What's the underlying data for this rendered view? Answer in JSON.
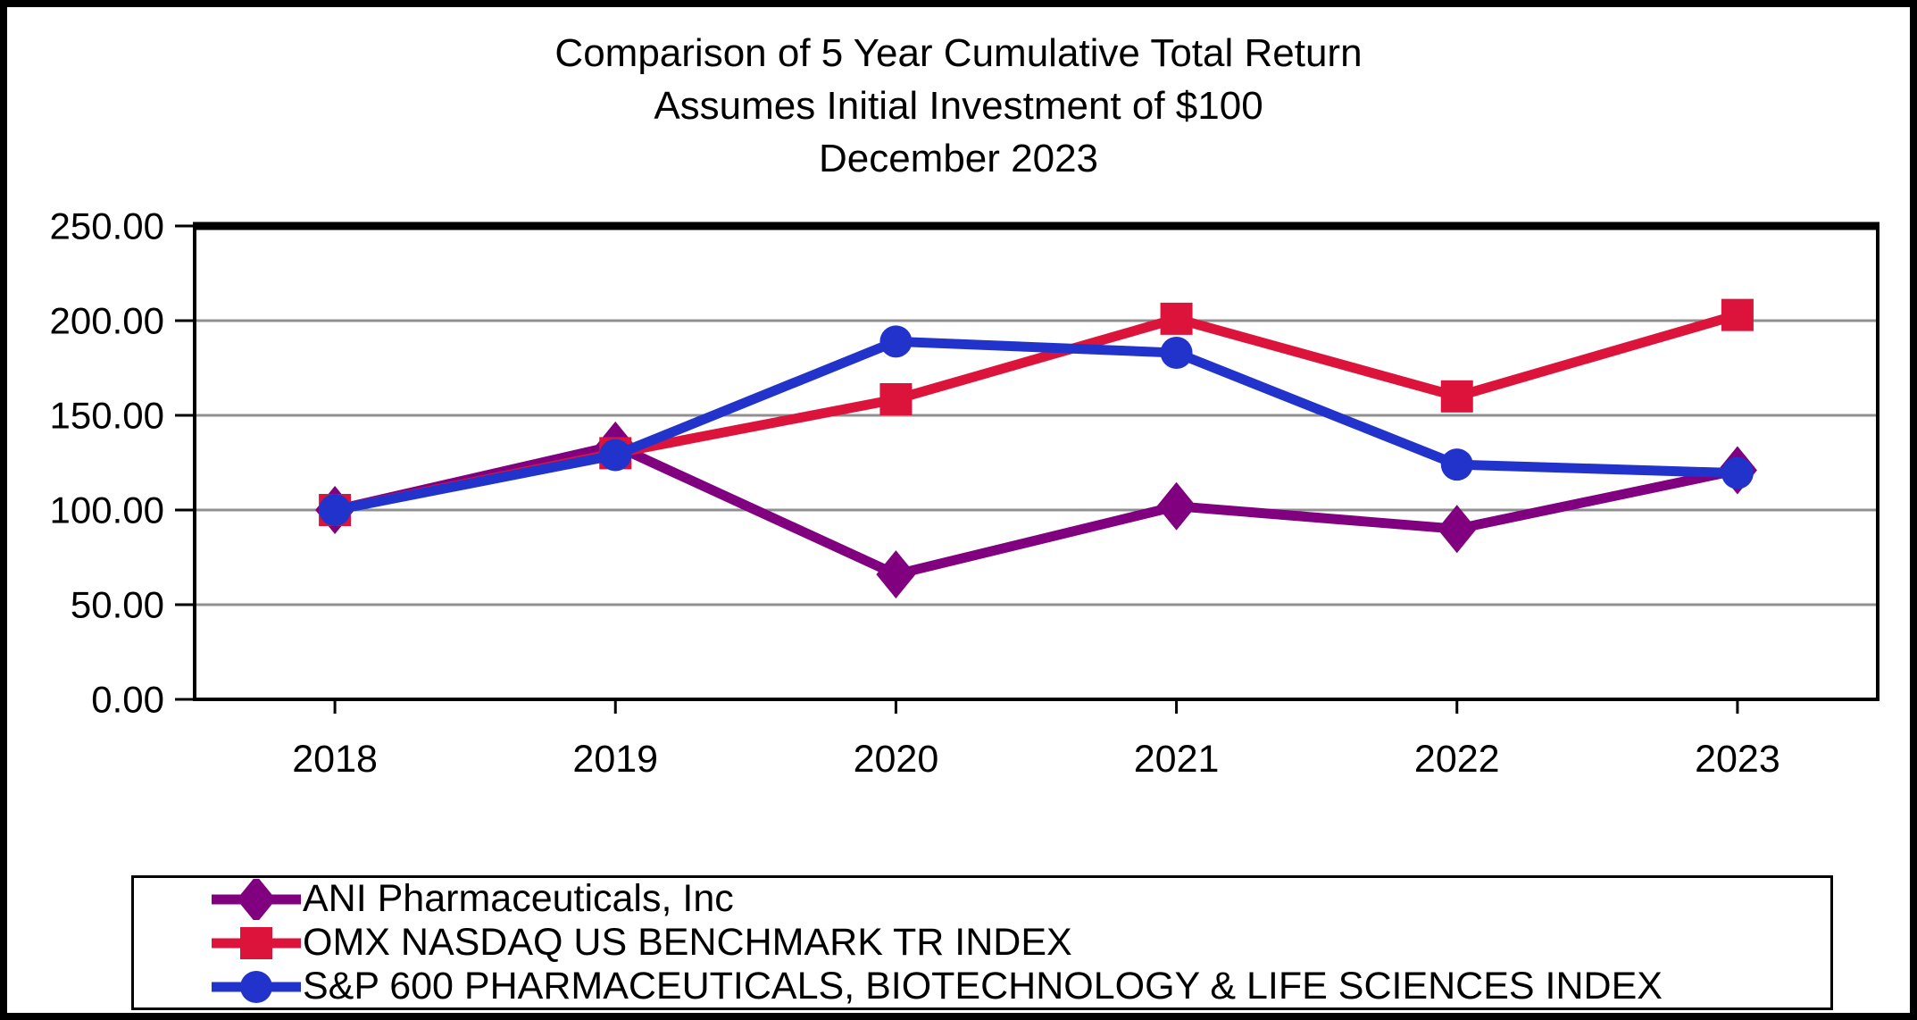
{
  "title": {
    "line1": "Comparison of 5 Year Cumulative Total Return",
    "line2": "Assumes Initial Investment of $100",
    "line3": "December 2023"
  },
  "chart_data": {
    "type": "line",
    "title": "Comparison of 5 Year Cumulative Total Return Assumes Initial Investment of $100 December 2023",
    "categories": [
      "2018",
      "2019",
      "2020",
      "2021",
      "2022",
      "2023"
    ],
    "series": [
      {
        "name": "ANI Pharmaceuticals, Inc",
        "marker": "diamond",
        "color": "#800080",
        "values": [
          100.0,
          134.0,
          66.0,
          102.0,
          90.0,
          121.0
        ]
      },
      {
        "name": "OMX NASDAQ US BENCHMARK TR INDEX",
        "marker": "square",
        "color": "#DC143C",
        "values": [
          100.0,
          130.0,
          158.5,
          201.0,
          160.0,
          203.0
        ]
      },
      {
        "name": "S&P 600 PHARMACEUTICALS, BIOTECHNOLOGY & LIFE SCIENCES INDEX",
        "marker": "circle",
        "color": "#2233CC",
        "values": [
          100.0,
          129.0,
          189.0,
          183.0,
          124.0,
          119.5
        ]
      }
    ],
    "xlabel": "",
    "ylabel": "",
    "ylim": [
      0,
      250
    ],
    "y_tick_step": 50,
    "y_tick_labels": [
      "0.00",
      "50.00",
      "100.00",
      "150.00",
      "200.00",
      "250.00"
    ],
    "grid": true,
    "gridline_color": "#909090",
    "axis_color": "#000000",
    "legend_position": "bottom"
  }
}
